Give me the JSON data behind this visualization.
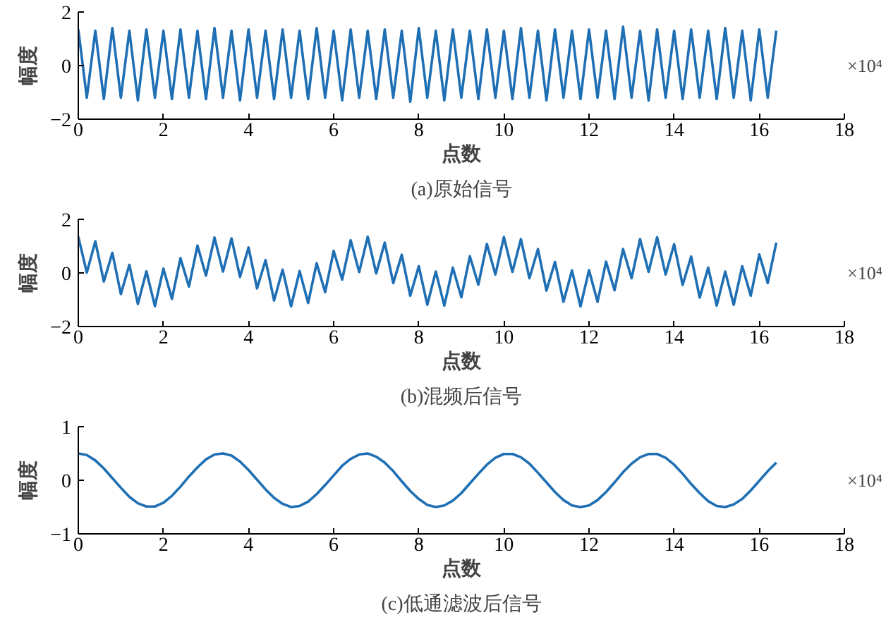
{
  "chart_data": [
    {
      "type": "line",
      "title": "(a)原始信号",
      "xlabel": "点数",
      "ylabel": "幅度",
      "annotations": [
        "×10⁴"
      ],
      "xlim": [
        0,
        18
      ],
      "xticks": [
        0,
        2,
        4,
        6,
        8,
        10,
        12,
        14,
        16,
        18
      ],
      "ylim": [
        -2,
        2
      ],
      "yticks": [
        -2,
        0,
        2
      ],
      "grid": false,
      "x": [
        0,
        0.2,
        0.4,
        0.6,
        0.8,
        1,
        1.2,
        1.4,
        1.6,
        1.8,
        2,
        2.2,
        2.4,
        2.6,
        2.8,
        3,
        3.2,
        3.4,
        3.6,
        3.8,
        4,
        4.2,
        4.4,
        4.6,
        4.8,
        5,
        5.2,
        5.4,
        5.6,
        5.8,
        6,
        6.2,
        6.4,
        6.6,
        6.8,
        7,
        7.2,
        7.4,
        7.6,
        7.8,
        8,
        8.2,
        8.4,
        8.6,
        8.8,
        9,
        9.2,
        9.4,
        9.6,
        9.8,
        10,
        10.2,
        10.4,
        10.6,
        10.8,
        11,
        11.2,
        11.4,
        11.6,
        11.8,
        12,
        12.2,
        12.4,
        12.6,
        12.8,
        13,
        13.2,
        13.4,
        13.6,
        13.8,
        14,
        14.2,
        14.4,
        14.6,
        14.8,
        15,
        15.2,
        15.4,
        15.6,
        15.8,
        16,
        16.2,
        16.4
      ],
      "series": [
        {
          "color": "#1f6fb4",
          "values": [
            1.35,
            -1.2,
            1.3,
            -1.25,
            1.4,
            -1.2,
            1.3,
            -1.3,
            1.35,
            -1.2,
            1.3,
            -1.25,
            1.35,
            -1.2,
            1.3,
            -1.25,
            1.4,
            -1.2,
            1.3,
            -1.3,
            1.35,
            -1.2,
            1.3,
            -1.25,
            1.35,
            -1.2,
            1.3,
            -1.25,
            1.4,
            -1.2,
            1.3,
            -1.3,
            1.35,
            -1.2,
            1.3,
            -1.25,
            1.35,
            -1.2,
            1.3,
            -1.35,
            1.4,
            -1.2,
            1.3,
            -1.3,
            1.35,
            -1.2,
            1.3,
            -1.25,
            1.35,
            -1.2,
            1.3,
            -1.25,
            1.4,
            -1.2,
            1.3,
            -1.3,
            1.35,
            -1.2,
            1.3,
            -1.25,
            1.35,
            -1.2,
            1.3,
            -1.25,
            1.45,
            -1.2,
            1.3,
            -1.3,
            1.35,
            -1.2,
            1.3,
            -1.25,
            1.35,
            -1.2,
            1.3,
            -1.25,
            1.4,
            -1.2,
            1.3,
            -1.3,
            1.35,
            -1.2,
            1.3
          ]
        }
      ]
    },
    {
      "type": "line",
      "title": "(b)混频后信号",
      "xlabel": "点数",
      "ylabel": "幅度",
      "annotations": [
        "×10⁴"
      ],
      "xlim": [
        0,
        18
      ],
      "xticks": [
        0,
        2,
        4,
        6,
        8,
        10,
        12,
        14,
        16,
        18
      ],
      "ylim": [
        -2,
        2
      ],
      "yticks": [
        -2,
        0,
        2
      ],
      "grid": false,
      "x": [
        0,
        0.2,
        0.4,
        0.6,
        0.8,
        1,
        1.2,
        1.4,
        1.6,
        1.8,
        2,
        2.2,
        2.4,
        2.6,
        2.8,
        3,
        3.2,
        3.4,
        3.6,
        3.8,
        4,
        4.2,
        4.4,
        4.6,
        4.8,
        5,
        5.2,
        5.4,
        5.6,
        5.8,
        6,
        6.2,
        6.4,
        6.6,
        6.8,
        7,
        7.2,
        7.4,
        7.6,
        7.8,
        8,
        8.2,
        8.4,
        8.6,
        8.8,
        9,
        9.2,
        9.4,
        9.6,
        9.8,
        10,
        10.2,
        10.4,
        10.6,
        10.8,
        11,
        11.2,
        11.4,
        11.6,
        11.8,
        12,
        12.2,
        12.4,
        12.6,
        12.8,
        13,
        13.2,
        13.4,
        13.6,
        13.8,
        14,
        14.2,
        14.4,
        14.6,
        14.8,
        15,
        15.2,
        15.4,
        15.6,
        15.8,
        16,
        16.2,
        16.4
      ],
      "series": [
        {
          "color": "#1f6fb4",
          "values": [
            1.35,
            0.01,
            1.18,
            -0.32,
            0.75,
            -0.79,
            0.3,
            -1.16,
            0.06,
            -1.24,
            0.16,
            -0.97,
            0.55,
            -0.51,
            1.02,
            -0.1,
            1.32,
            0.05,
            1.29,
            -0.15,
            0.95,
            -0.58,
            0.48,
            -1.03,
            0.12,
            -1.25,
            0.07,
            -1.12,
            0.36,
            -0.72,
            0.82,
            -0.25,
            1.22,
            0.03,
            1.35,
            -0.02,
            1.13,
            -0.38,
            0.68,
            -0.85,
            0.25,
            -1.19,
            0.05,
            -1.22,
            0.2,
            -0.91,
            0.62,
            -0.44,
            1.08,
            -0.06,
            1.34,
            0.04,
            1.26,
            -0.2,
            0.89,
            -0.66,
            0.41,
            -1.08,
            0.09,
            -1.25,
            0.1,
            -1.08,
            0.42,
            -0.65,
            0.89,
            -0.2,
            1.26,
            0.04,
            1.33,
            -0.06,
            1.07,
            -0.45,
            0.61,
            -0.92,
            0.2,
            -1.22,
            0.05,
            -1.19,
            0.25,
            -0.85,
            0.69,
            -0.38,
            1.13
          ]
        }
      ]
    },
    {
      "type": "line",
      "title": "(c)低通滤波后信号",
      "xlabel": "点数",
      "ylabel": "幅度",
      "annotations": [
        "×10⁴"
      ],
      "xlim": [
        0,
        18
      ],
      "xticks": [
        0,
        2,
        4,
        6,
        8,
        10,
        12,
        14,
        16,
        18
      ],
      "ylim": [
        -1,
        1
      ],
      "yticks": [
        -1,
        0,
        1
      ],
      "grid": false,
      "x": [
        0,
        0.2,
        0.4,
        0.6,
        0.8,
        1,
        1.2,
        1.4,
        1.6,
        1.8,
        2,
        2.2,
        2.4,
        2.6,
        2.8,
        3,
        3.2,
        3.4,
        3.6,
        3.8,
        4,
        4.2,
        4.4,
        4.6,
        4.8,
        5,
        5.2,
        5.4,
        5.6,
        5.8,
        6,
        6.2,
        6.4,
        6.6,
        6.8,
        7,
        7.2,
        7.4,
        7.6,
        7.8,
        8,
        8.2,
        8.4,
        8.6,
        8.8,
        9,
        9.2,
        9.4,
        9.6,
        9.8,
        10,
        10.2,
        10.4,
        10.6,
        10.8,
        11,
        11.2,
        11.4,
        11.6,
        11.8,
        12,
        12.2,
        12.4,
        12.6,
        12.8,
        13,
        13.2,
        13.4,
        13.6,
        13.8,
        14,
        14.2,
        14.4,
        14.6,
        14.8,
        15,
        15.2,
        15.4,
        15.6,
        15.8,
        16,
        16.2,
        16.4
      ],
      "series": [
        {
          "color": "#1f6fb4",
          "values": [
            0.5,
            0.47,
            0.37,
            0.22,
            0.04,
            -0.14,
            -0.31,
            -0.43,
            -0.49,
            -0.49,
            -0.42,
            -0.29,
            -0.12,
            0.07,
            0.24,
            0.39,
            0.48,
            0.5,
            0.46,
            0.35,
            0.19,
            0.01,
            -0.17,
            -0.33,
            -0.44,
            -0.5,
            -0.48,
            -0.4,
            -0.26,
            -0.09,
            0.09,
            0.27,
            0.4,
            0.48,
            0.5,
            0.44,
            0.33,
            0.17,
            -0.02,
            -0.2,
            -0.35,
            -0.46,
            -0.5,
            -0.47,
            -0.38,
            -0.24,
            -0.06,
            0.12,
            0.29,
            0.42,
            0.49,
            0.49,
            0.43,
            0.31,
            0.14,
            -0.04,
            -0.22,
            -0.37,
            -0.47,
            -0.5,
            -0.47,
            -0.37,
            -0.22,
            -0.04,
            0.15,
            0.31,
            0.43,
            0.49,
            0.49,
            0.42,
            0.29,
            0.12,
            -0.07,
            -0.24,
            -0.39,
            -0.48,
            -0.5,
            -0.45,
            -0.35,
            -0.19,
            -0.01,
            0.17,
            0.33
          ]
        }
      ]
    }
  ]
}
